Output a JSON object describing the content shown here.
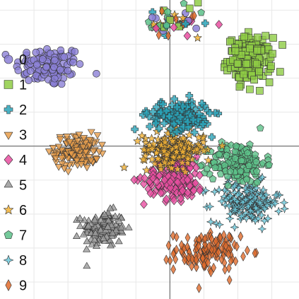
{
  "chart_data": {
    "type": "scatter",
    "title": "",
    "xlabel": "",
    "ylabel": "",
    "xlim": [
      -50,
      38
    ],
    "ylim": [
      -45,
      43
    ],
    "grid": true,
    "axes_lines_through_origin": true,
    "legend_position": "left",
    "series": [
      {
        "name": "0",
        "marker": "circle",
        "color": "#8b7fd6",
        "center": [
          -35.5,
          23.5
        ],
        "spread": [
          5.0,
          3.0
        ],
        "count": 110
      },
      {
        "name": "1",
        "marker": "square",
        "color": "#8fcc45",
        "center": [
          23.5,
          25.5
        ],
        "spread": [
          3.2,
          3.2
        ],
        "count": 180
      },
      {
        "name": "2",
        "marker": "plus",
        "color": "#29a3b8",
        "center": [
          3.0,
          9.0
        ],
        "spread": [
          4.5,
          2.2
        ],
        "count": 150
      },
      {
        "name": "3",
        "marker": "triangle-down",
        "color": "#e99d4a",
        "center": [
          -27.5,
          -1.5
        ],
        "spread": [
          3.2,
          2.5
        ],
        "count": 130
      },
      {
        "name": "4",
        "marker": "diamond",
        "color": "#e94ea0",
        "center": [
          1.5,
          -9.5
        ],
        "spread": [
          4.5,
          3.2
        ],
        "count": 170
      },
      {
        "name": "5",
        "marker": "triangle-up",
        "color": "#9a9a9a",
        "center": [
          -19.5,
          -24.5
        ],
        "spread": [
          3.2,
          2.6
        ],
        "count": 140
      },
      {
        "name": "6",
        "marker": "star",
        "color": "#f2b134",
        "center": [
          1.0,
          -1.0
        ],
        "spread": [
          4.5,
          2.5
        ],
        "count": 190
      },
      {
        "name": "7",
        "marker": "pentagon",
        "color": "#5cc088",
        "center": [
          20.0,
          -5.0
        ],
        "spread": [
          4.0,
          3.0
        ],
        "count": 160
      },
      {
        "name": "8",
        "marker": "concave-star",
        "color": "#6cc9dc",
        "center": [
          22.5,
          -16.5
        ],
        "spread": [
          5.0,
          3.0
        ],
        "count": 170
      },
      {
        "name": "9",
        "marker": "diamond-narrow",
        "color": "#e06a2a",
        "center": [
          11.0,
          -31.0
        ],
        "spread": [
          4.8,
          2.8
        ],
        "count": 130
      }
    ],
    "satellite_cluster": {
      "series": "mixed",
      "center": [
        1.5,
        36.0
      ],
      "spread": [
        4.5,
        2.5
      ],
      "count": 60
    }
  }
}
